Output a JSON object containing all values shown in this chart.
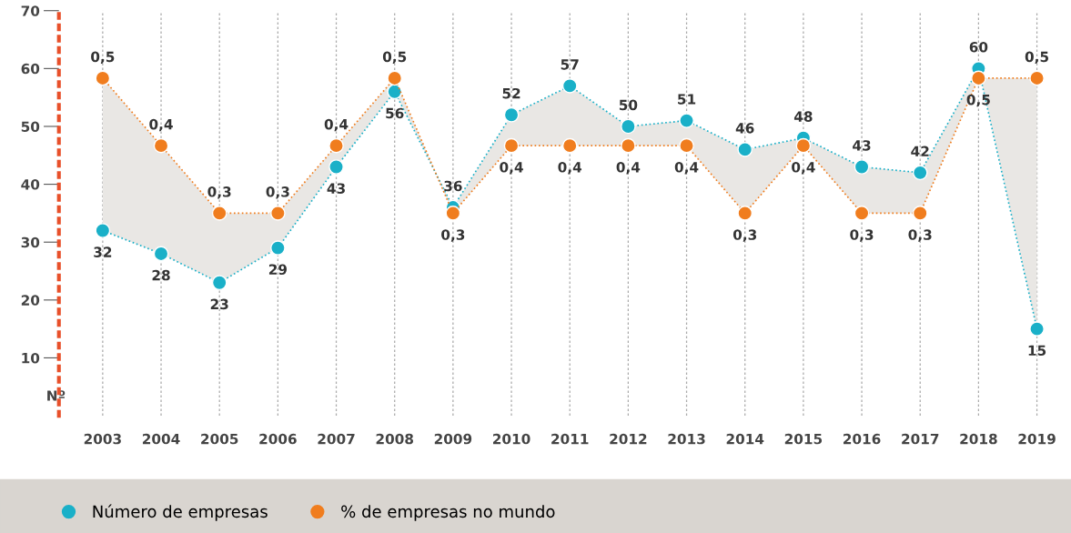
{
  "chart_data": {
    "type": "line",
    "ylabel": "Nº",
    "categories": [
      "2003",
      "2004",
      "2005",
      "2006",
      "2007",
      "2008",
      "2009",
      "2010",
      "2011",
      "2012",
      "2013",
      "2014",
      "2015",
      "2016",
      "2017",
      "2018",
      "2019"
    ],
    "series": [
      {
        "name": "Número de empresas",
        "color": "#1ab0c8",
        "values": [
          32,
          28,
          23,
          29,
          43,
          56,
          36,
          52,
          57,
          50,
          51,
          46,
          48,
          43,
          42,
          60,
          15
        ]
      },
      {
        "name": "% de empresas no mundo",
        "color": "#f07d1e",
        "axis": "y2",
        "values": [
          0.5,
          0.4,
          0.3,
          0.3,
          0.4,
          0.5,
          0.3,
          0.4,
          0.4,
          0.4,
          0.4,
          0.3,
          0.4,
          0.3,
          0.3,
          0.5,
          0.5
        ],
        "value_labels": [
          "0,5",
          "0,4",
          "0,3",
          "0,3",
          "0,4",
          "0,5",
          "0,3",
          "0,4",
          "0,4",
          "0,4",
          "0,4",
          "0,3",
          "0,4",
          "0,3",
          "0,3",
          "0,5",
          "0,5"
        ]
      }
    ],
    "ylim": [
      0,
      70
    ],
    "yticks": [
      10,
      20,
      30,
      40,
      50,
      60,
      70
    ],
    "y2lim": [
      0,
      0.6
    ],
    "data_labels": true,
    "grid": "x",
    "legend": "bottom",
    "marker": "circle",
    "line_style": "dotted"
  }
}
